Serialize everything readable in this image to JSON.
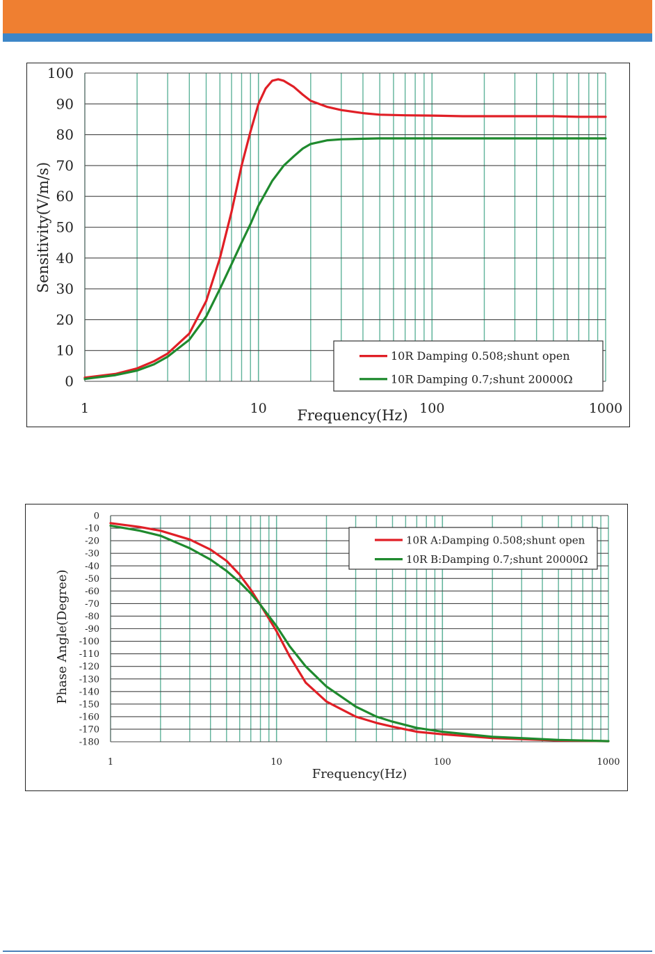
{
  "colors": {
    "header": "#ef7f31",
    "header_stripe": "#3d86c8",
    "grid_vertical": "#5fb39a",
    "grid_horizontal": "#444444",
    "series_a": "#e01f26",
    "series_b": "#1f8a2e"
  },
  "chart_data": [
    {
      "type": "line",
      "xscale": "log",
      "xlim": [
        1,
        1000
      ],
      "ylim": [
        0,
        100
      ],
      "xticks": [
        "1",
        "10",
        "100",
        "1000"
      ],
      "yticks": [
        "0",
        "10",
        "20",
        "30",
        "40",
        "50",
        "60",
        "70",
        "80",
        "90",
        "100"
      ],
      "xlabel": "Frequency(Hz)",
      "ylabel": "Sensitivity(V/m/s)",
      "grid": true,
      "legend_position": "bottom-right",
      "series": [
        {
          "name": "10R Damping 0.508;shunt open",
          "color": "#e01f26",
          "x": [
            1,
            1.5,
            2,
            2.5,
            3,
            4,
            5,
            6,
            7,
            8,
            9,
            10,
            11,
            12,
            13,
            14,
            16,
            18,
            20,
            25,
            30,
            40,
            50,
            70,
            100,
            150,
            200,
            300,
            500,
            700,
            1000
          ],
          "y": [
            1.2,
            2.4,
            4.2,
            6.5,
            9,
            15.5,
            26,
            40,
            55,
            70,
            81,
            90,
            95,
            97.5,
            98,
            97.5,
            95.5,
            93,
            91,
            89,
            88,
            87,
            86.5,
            86.3,
            86.2,
            86,
            86,
            86,
            86,
            85.8,
            85.8
          ]
        },
        {
          "name": "10R Damping 0.7;shunt 20000Ω",
          "color": "#1f8a2e",
          "x": [
            1,
            1.5,
            2,
            2.5,
            3,
            4,
            5,
            6,
            7,
            8,
            9,
            10,
            12,
            14,
            16,
            18,
            20,
            25,
            30,
            40,
            50,
            70,
            100,
            200,
            500,
            1000
          ],
          "y": [
            0.8,
            2,
            3.5,
            5.5,
            8,
            13.5,
            21,
            30,
            38,
            45,
            51,
            57,
            65,
            70,
            73,
            75.5,
            77,
            78.2,
            78.5,
            78.7,
            78.8,
            78.8,
            78.8,
            78.8,
            78.8,
            78.8
          ]
        }
      ]
    },
    {
      "type": "line",
      "xscale": "log",
      "xlim": [
        1,
        1000
      ],
      "ylim": [
        -180,
        0
      ],
      "xticks": [
        "1",
        "10",
        "100",
        "1000"
      ],
      "yticks": [
        "0",
        "-10",
        "-20",
        "-30",
        "-40",
        "-50",
        "-60",
        "-70",
        "-80",
        "-90",
        "-100",
        "-110",
        "-120",
        "-130",
        "-140",
        "-150",
        "-160",
        "-170",
        "-180"
      ],
      "xlabel": "Frequency(Hz)",
      "ylabel": "Phase Angle(Degree)",
      "grid": true,
      "legend_position": "top-right",
      "series": [
        {
          "name": "10R A:Damping 0.508;shunt open",
          "color": "#e01f26",
          "x": [
            1,
            1.5,
            2,
            3,
            4,
            5,
            6,
            7,
            8,
            9,
            10,
            12,
            15,
            20,
            30,
            40,
            50,
            70,
            100,
            200,
            500,
            1000
          ],
          "y": [
            -6,
            -9,
            -12,
            -19,
            -27,
            -36,
            -47,
            -59,
            -71,
            -82,
            -92,
            -112,
            -133,
            -148,
            -160,
            -165,
            -168,
            -172,
            -174,
            -177,
            -179,
            -179.5
          ]
        },
        {
          "name": "10R B:Damping 0.7;shunt 20000Ω",
          "color": "#1f8a2e",
          "x": [
            1,
            1.5,
            2,
            3,
            4,
            5,
            6,
            7,
            8,
            9,
            10,
            12,
            15,
            20,
            30,
            40,
            50,
            70,
            100,
            200,
            500,
            1000
          ],
          "y": [
            -8,
            -12,
            -16,
            -26,
            -35,
            -44,
            -53,
            -62,
            -71,
            -80,
            -88,
            -104,
            -120,
            -136,
            -152,
            -160,
            -164,
            -169,
            -172,
            -176,
            -178.5,
            -179.5
          ]
        }
      ]
    }
  ]
}
